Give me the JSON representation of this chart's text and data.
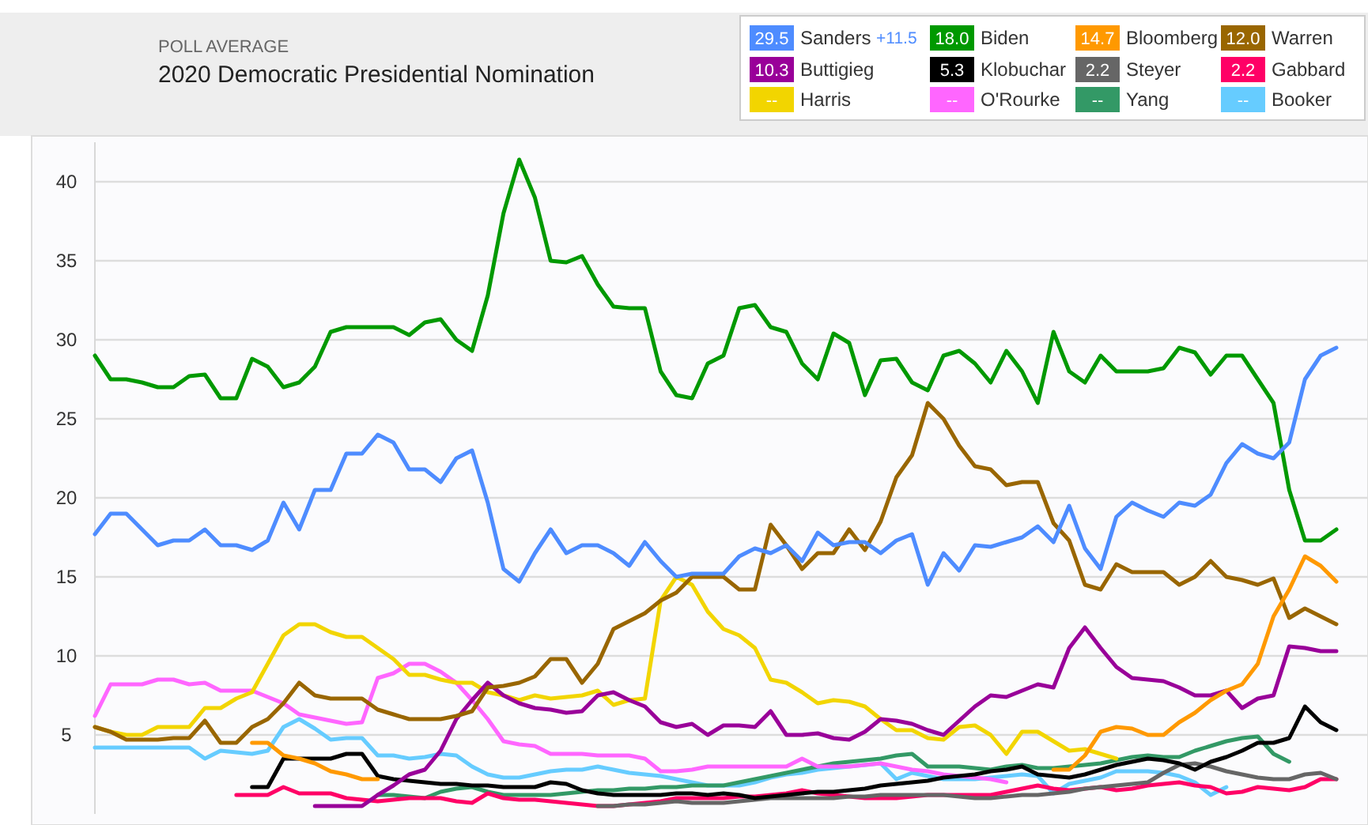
{
  "chart_data": {
    "type": "line",
    "subtitle": "POLL AVERAGE",
    "title": "2020 Democratic Presidential Nomination",
    "categories": [
      null,
      null,
      null,
      null,
      null,
      null,
      null,
      null,
      null,
      null,
      null,
      null,
      null,
      null,
      null,
      null,
      null,
      null,
      null,
      null,
      null,
      null,
      null,
      null,
      null,
      null,
      null,
      null,
      null,
      null,
      null,
      null,
      null,
      null,
      null,
      null,
      null,
      null,
      null,
      null,
      null,
      null,
      null,
      null,
      null,
      null,
      null,
      null,
      null,
      null,
      null,
      null,
      null,
      null,
      null,
      null,
      null,
      null,
      null,
      null,
      null,
      null,
      null,
      null,
      null,
      null,
      null,
      null,
      null,
      null,
      null,
      null,
      null,
      null,
      null,
      null,
      null,
      null,
      null,
      null
    ],
    "ylim": [
      0,
      42.5
    ],
    "yticks": [
      5,
      10,
      15,
      20,
      25,
      30,
      35,
      40
    ],
    "grid": "y",
    "tick_labels": "y",
    "legend": "top right",
    "line_style": "solid",
    "marker": "none",
    "annotations": [
      "29.5",
      "18.0",
      "14.7",
      "12.0",
      "10.3",
      "5.3",
      "2.2",
      "2.2",
      "--",
      "--",
      "--",
      "--",
      "+11.5"
    ],
    "series": [
      {
        "name": "Sanders",
        "color": "#4e8cff",
        "values": [
          17.7,
          19.0,
          19.0,
          18.0,
          17.0,
          17.3,
          17.3,
          18.0,
          17.0,
          17.0,
          16.7,
          17.3,
          19.7,
          18.0,
          20.5,
          20.5,
          22.8,
          22.8,
          24.0,
          23.5,
          21.8,
          21.8,
          21.0,
          22.5,
          23.0,
          19.7,
          15.5,
          14.7,
          16.5,
          18.0,
          16.5,
          17.0,
          17.0,
          16.5,
          15.7,
          17.2,
          16.0,
          15.0,
          15.2,
          15.2,
          15.2,
          16.3,
          16.8,
          16.5,
          17.0,
          16.0,
          17.8,
          17.0,
          17.2,
          17.2,
          16.5,
          17.3,
          17.7,
          14.5,
          16.5,
          15.4,
          17.0,
          16.9,
          17.2,
          17.5,
          18.2,
          17.2,
          19.5,
          16.8,
          15.5,
          18.8,
          19.7,
          19.2,
          18.8,
          19.7,
          19.5,
          20.2,
          22.2,
          23.4,
          22.8,
          22.5,
          23.5,
          27.5,
          29.0,
          29.5
        ]
      },
      {
        "name": "Biden",
        "color": "#009900",
        "values": [
          29.0,
          27.5,
          27.5,
          27.3,
          27.0,
          27.0,
          27.7,
          27.8,
          26.3,
          26.3,
          28.8,
          28.3,
          27.0,
          27.3,
          28.3,
          30.5,
          30.8,
          30.8,
          30.8,
          30.8,
          30.3,
          31.1,
          31.3,
          30.0,
          29.3,
          32.8,
          38.0,
          41.4,
          39.0,
          35.0,
          34.9,
          35.3,
          33.5,
          32.1,
          32.0,
          32.0,
          28.0,
          26.5,
          26.3,
          28.5,
          29.0,
          32.0,
          32.2,
          30.8,
          30.5,
          28.5,
          27.5,
          30.4,
          29.8,
          26.5,
          28.7,
          28.8,
          27.3,
          26.8,
          29.0,
          29.3,
          28.5,
          27.3,
          29.3,
          28.0,
          26.0,
          30.5,
          28.0,
          27.3,
          29.0,
          28.0,
          28.0,
          28.0,
          28.2,
          29.5,
          29.2,
          27.8,
          29.0,
          29.0,
          27.5,
          26.0,
          20.5,
          17.3,
          17.3,
          18.0
        ]
      },
      {
        "name": "Bloomberg",
        "color": "#ff9900",
        "values": [
          null,
          null,
          null,
          null,
          null,
          null,
          null,
          null,
          null,
          null,
          4.5,
          4.5,
          3.7,
          3.5,
          3.2,
          2.7,
          2.5,
          2.2,
          2.2,
          null,
          null,
          null,
          null,
          null,
          null,
          null,
          null,
          null,
          null,
          null,
          null,
          null,
          null,
          null,
          null,
          null,
          null,
          null,
          null,
          null,
          null,
          null,
          null,
          null,
          null,
          null,
          null,
          null,
          null,
          null,
          null,
          null,
          null,
          null,
          null,
          null,
          null,
          null,
          null,
          null,
          null,
          2.8,
          2.8,
          3.7,
          5.2,
          5.5,
          5.4,
          5.0,
          5.0,
          5.8,
          6.4,
          7.2,
          7.8,
          8.2,
          9.5,
          12.5,
          14.2,
          16.3,
          15.7,
          14.7
        ]
      },
      {
        "name": "Warren",
        "color": "#996600",
        "values": [
          5.5,
          5.2,
          4.7,
          4.7,
          4.7,
          4.8,
          4.8,
          5.9,
          4.5,
          4.5,
          5.5,
          6.0,
          7.0,
          8.3,
          7.5,
          7.3,
          7.3,
          7.3,
          6.6,
          6.3,
          6.0,
          6.0,
          6.0,
          6.2,
          6.5,
          8.0,
          8.1,
          8.3,
          8.7,
          9.8,
          9.8,
          8.3,
          9.5,
          11.7,
          12.2,
          12.7,
          13.5,
          14.0,
          15.0,
          15.0,
          15.0,
          14.2,
          14.2,
          18.3,
          17.0,
          15.5,
          16.5,
          16.5,
          18.0,
          16.7,
          18.5,
          21.3,
          22.7,
          26.0,
          25.0,
          23.3,
          22.0,
          21.8,
          20.8,
          21.0,
          21.0,
          18.4,
          17.3,
          14.5,
          14.2,
          15.8,
          15.3,
          15.3,
          15.3,
          14.5,
          15.0,
          16.0,
          15.0,
          14.8,
          14.5,
          14.9,
          12.4,
          13.0,
          12.5,
          12.0
        ]
      },
      {
        "name": "Buttigieg",
        "color": "#990099",
        "values": [
          null,
          null,
          null,
          null,
          null,
          null,
          null,
          null,
          null,
          null,
          null,
          null,
          null,
          null,
          0.5,
          0.5,
          0.5,
          0.5,
          1.2,
          1.8,
          2.5,
          2.8,
          4.0,
          6.0,
          7.2,
          8.3,
          7.5,
          7.0,
          6.7,
          6.6,
          6.4,
          6.5,
          7.5,
          7.7,
          7.2,
          6.8,
          5.8,
          5.5,
          5.7,
          5.0,
          5.6,
          5.6,
          5.5,
          6.5,
          5.0,
          5.0,
          5.1,
          4.8,
          4.7,
          5.2,
          6.0,
          5.9,
          5.7,
          5.3,
          5.0,
          5.9,
          6.8,
          7.5,
          7.4,
          7.8,
          8.2,
          8.0,
          10.5,
          11.8,
          10.5,
          9.3,
          8.6,
          8.5,
          8.4,
          8.0,
          7.5,
          7.5,
          7.8,
          6.7,
          7.3,
          7.5,
          10.6,
          10.5,
          10.3,
          10.3
        ]
      },
      {
        "name": "Klobuchar",
        "color": "#000000",
        "values": [
          null,
          null,
          null,
          null,
          null,
          null,
          null,
          null,
          null,
          null,
          1.7,
          1.7,
          3.5,
          3.5,
          3.5,
          3.5,
          3.8,
          3.8,
          2.4,
          2.2,
          2.1,
          2.0,
          1.9,
          1.9,
          1.8,
          1.8,
          1.7,
          1.7,
          1.7,
          2.0,
          1.9,
          1.5,
          1.3,
          1.2,
          1.2,
          1.2,
          1.2,
          1.3,
          1.3,
          1.2,
          1.3,
          1.2,
          1.0,
          1.1,
          1.2,
          1.3,
          1.4,
          1.4,
          1.5,
          1.6,
          1.8,
          1.9,
          2.0,
          2.1,
          2.3,
          2.4,
          2.5,
          2.7,
          2.8,
          3.0,
          2.5,
          2.4,
          2.3,
          2.5,
          2.8,
          3.1,
          3.3,
          3.5,
          3.4,
          3.2,
          2.8,
          3.3,
          3.6,
          4.0,
          4.5,
          4.5,
          4.8,
          6.8,
          5.8,
          5.3
        ]
      },
      {
        "name": "Steyer",
        "color": "#666666",
        "values": [
          null,
          null,
          null,
          null,
          null,
          null,
          null,
          null,
          null,
          null,
          null,
          null,
          null,
          null,
          null,
          null,
          null,
          null,
          null,
          null,
          null,
          null,
          null,
          null,
          null,
          null,
          null,
          null,
          null,
          null,
          null,
          null,
          0.5,
          0.5,
          0.6,
          0.6,
          0.7,
          0.8,
          0.7,
          0.7,
          0.7,
          0.8,
          0.9,
          1.0,
          1.0,
          1.0,
          1.0,
          1.0,
          1.1,
          1.1,
          1.2,
          1.2,
          1.2,
          1.2,
          1.2,
          1.1,
          1.0,
          1.0,
          1.1,
          1.2,
          1.2,
          1.3,
          1.4,
          1.6,
          1.7,
          1.8,
          1.9,
          2.0,
          2.6,
          3.1,
          3.2,
          3.0,
          2.7,
          2.5,
          2.3,
          2.2,
          2.2,
          2.5,
          2.6,
          2.2
        ]
      },
      {
        "name": "Gabbard",
        "color": "#ff0066",
        "values": [
          null,
          null,
          null,
          null,
          null,
          null,
          null,
          null,
          null,
          1.2,
          1.2,
          1.2,
          1.7,
          1.3,
          1.3,
          1.3,
          1.0,
          0.9,
          0.8,
          0.9,
          1.0,
          1.0,
          1.0,
          0.8,
          0.7,
          1.3,
          1.0,
          0.9,
          0.9,
          0.8,
          0.7,
          0.6,
          0.5,
          0.5,
          0.6,
          0.7,
          0.8,
          1.0,
          1.0,
          1.0,
          1.0,
          1.1,
          1.1,
          1.2,
          1.3,
          1.5,
          1.3,
          1.2,
          1.1,
          1.0,
          1.0,
          1.0,
          1.1,
          1.2,
          1.2,
          1.2,
          1.2,
          1.2,
          1.4,
          1.6,
          1.8,
          1.6,
          1.5,
          1.6,
          1.7,
          1.5,
          1.6,
          1.8,
          1.9,
          2.0,
          1.8,
          1.7,
          1.3,
          1.4,
          1.7,
          1.6,
          1.5,
          1.7,
          2.2,
          2.2
        ]
      },
      {
        "name": "Harris",
        "color": "#f2d500",
        "values": [
          5.5,
          5.2,
          5.0,
          5.0,
          5.5,
          5.5,
          5.5,
          6.7,
          6.7,
          7.3,
          7.7,
          9.5,
          11.3,
          12.0,
          12.0,
          11.5,
          11.2,
          11.2,
          10.5,
          9.8,
          8.8,
          8.8,
          8.5,
          8.3,
          8.3,
          7.7,
          7.5,
          7.2,
          7.5,
          7.3,
          7.4,
          7.5,
          7.8,
          6.9,
          7.2,
          7.3,
          13.5,
          15.0,
          14.5,
          12.8,
          11.7,
          11.3,
          10.5,
          8.5,
          8.3,
          7.7,
          7.0,
          7.2,
          7.1,
          6.8,
          6.0,
          5.3,
          5.3,
          4.8,
          4.7,
          5.5,
          5.6,
          5.0,
          3.8,
          5.2,
          5.2,
          4.6,
          4.0,
          4.1,
          3.8,
          3.5,
          null,
          null,
          null,
          null,
          null,
          null,
          null,
          null,
          null,
          null,
          null,
          null,
          null,
          null
        ]
      },
      {
        "name": "O'Rourke",
        "color": "#ff66ff",
        "values": [
          6.2,
          8.2,
          8.2,
          8.2,
          8.5,
          8.5,
          8.2,
          8.3,
          7.8,
          7.8,
          7.8,
          7.4,
          7.0,
          6.3,
          6.1,
          5.9,
          5.7,
          5.8,
          8.6,
          8.9,
          9.5,
          9.5,
          9.0,
          8.3,
          7.2,
          6.0,
          4.6,
          4.4,
          4.3,
          3.8,
          3.8,
          3.8,
          3.7,
          3.7,
          3.7,
          3.5,
          2.7,
          2.7,
          2.8,
          3.0,
          3.0,
          3.0,
          3.0,
          3.0,
          3.0,
          3.5,
          3.0,
          3.0,
          3.0,
          3.1,
          3.2,
          3.0,
          2.8,
          2.7,
          2.5,
          2.4,
          2.3,
          2.2,
          2.0,
          null,
          null,
          null,
          null,
          null,
          null,
          null,
          null,
          null,
          null,
          null,
          null,
          null,
          null,
          null,
          null,
          null,
          null,
          null,
          null,
          null
        ]
      },
      {
        "name": "Yang",
        "color": "#339966",
        "values": [
          null,
          null,
          null,
          null,
          null,
          null,
          null,
          null,
          null,
          null,
          null,
          null,
          null,
          null,
          null,
          null,
          null,
          null,
          1.2,
          1.2,
          1.1,
          1.0,
          1.4,
          1.6,
          1.7,
          1.4,
          1.2,
          1.2,
          1.2,
          1.2,
          1.3,
          1.4,
          1.5,
          1.5,
          1.6,
          1.6,
          1.7,
          1.7,
          1.8,
          1.8,
          1.8,
          2.0,
          2.2,
          2.4,
          2.6,
          2.8,
          3.0,
          3.2,
          3.3,
          3.4,
          3.5,
          3.7,
          3.8,
          3.0,
          3.0,
          3.0,
          2.9,
          2.8,
          3.0,
          3.1,
          2.9,
          2.9,
          3.0,
          3.1,
          3.2,
          3.4,
          3.6,
          3.7,
          3.6,
          3.6,
          4.0,
          4.3,
          4.6,
          4.8,
          4.9,
          3.8,
          3.3,
          null,
          null,
          null
        ]
      },
      {
        "name": "Booker",
        "color": "#66ccff",
        "values": [
          4.2,
          4.2,
          4.2,
          4.2,
          4.2,
          4.2,
          4.2,
          3.5,
          4.0,
          3.9,
          3.8,
          4.0,
          5.5,
          6.0,
          5.4,
          4.7,
          4.8,
          4.8,
          3.7,
          3.7,
          3.5,
          3.6,
          3.8,
          3.7,
          3.0,
          2.5,
          2.3,
          2.3,
          2.5,
          2.7,
          2.8,
          2.8,
          3.0,
          2.8,
          2.6,
          2.5,
          2.4,
          2.2,
          2.0,
          1.8,
          1.8,
          1.8,
          2.0,
          2.3,
          2.5,
          2.6,
          2.8,
          2.9,
          3.0,
          3.1,
          3.2,
          2.2,
          2.6,
          2.4,
          2.2,
          2.2,
          2.2,
          2.3,
          2.4,
          2.5,
          2.4,
          1.3,
          1.9,
          2.1,
          2.3,
          2.7,
          2.7,
          2.7,
          2.6,
          2.4,
          2.0,
          1.2,
          1.7,
          null,
          null,
          null,
          null,
          null,
          null,
          null
        ]
      }
    ]
  }
}
